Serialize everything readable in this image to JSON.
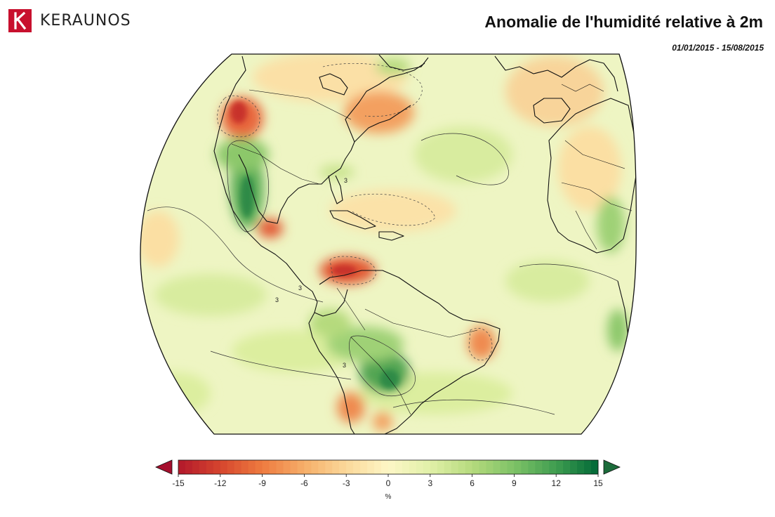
{
  "brand": {
    "name": "KERAUNOS",
    "logo_icon": "keraunos-k-logo",
    "accent_color": "#c8102e"
  },
  "title": "Anomalie de l'humidité relative à 2m",
  "date_range": "01/01/2015 - 15/08/2015",
  "map": {
    "type": "filled-contour anomaly map",
    "region": "Atlantic / Americas / Western Europe & Africa (globe projection)",
    "contour_labels": [
      "3",
      "3",
      "3",
      "3"
    ],
    "colors": {
      "land_border": "#111111",
      "ocean_edge": "#111111"
    }
  },
  "colorbar": {
    "ticks": [
      "-15",
      "-12",
      "-9",
      "-6",
      "-3",
      "0",
      "3",
      "6",
      "9",
      "12",
      "15"
    ],
    "unit": "%",
    "colors": [
      "#b2182b",
      "#d6452e",
      "#ee7b3f",
      "#f6ae69",
      "#fbd99a",
      "#fdf6c6",
      "#e1f0a8",
      "#b5da7d",
      "#7dc266",
      "#3f9d50",
      "#006837"
    ],
    "extend": "both"
  }
}
